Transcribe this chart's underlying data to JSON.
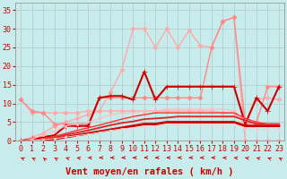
{
  "background_color": "#c8ecec",
  "grid_color": "#b0c8c8",
  "xlabel": "Vent moyen/en rafales ( km/h )",
  "x_ticks": [
    0,
    1,
    2,
    3,
    4,
    5,
    6,
    7,
    8,
    9,
    10,
    11,
    12,
    13,
    14,
    15,
    16,
    17,
    18,
    19,
    20,
    21,
    22,
    23
  ],
  "ylim": [
    0,
    37
  ],
  "xlim": [
    -0.5,
    23.5
  ],
  "yticks": [
    0,
    5,
    10,
    15,
    20,
    25,
    30,
    35
  ],
  "series": [
    {
      "color": "#ffaaaa",
      "y": [
        0,
        1,
        2,
        4,
        5,
        6,
        7,
        8,
        13,
        19,
        30,
        30,
        25,
        30,
        25,
        29.5,
        25.5,
        25,
        32,
        33,
        0,
        0,
        0,
        0
      ],
      "marker": "D",
      "lw": 1.0,
      "ms": 2.5
    },
    {
      "color": "#ffaaaa",
      "y": [
        11,
        7.5,
        7.5,
        7.5,
        7.5,
        7.5,
        8,
        8,
        8,
        8,
        8,
        8,
        8,
        8,
        8,
        8,
        8,
        8,
        7.5,
        7.5,
        4.5,
        11,
        11.5,
        11
      ],
      "marker": "D",
      "lw": 1.0,
      "ms": 2.5
    },
    {
      "color": "#ff8888",
      "y": [
        11,
        8,
        7.5,
        4.5,
        4.5,
        4.5,
        4.5,
        11.5,
        11.5,
        11.5,
        11.5,
        11.5,
        11.5,
        11.5,
        11.5,
        11.5,
        11.5,
        25,
        32,
        33,
        4.5,
        5,
        14.5,
        14.5
      ],
      "marker": "D",
      "lw": 1.0,
      "ms": 2.5
    },
    {
      "color": "#cc0000",
      "y": [
        0,
        0.5,
        1,
        1.5,
        4,
        4,
        4,
        11.5,
        12,
        12,
        11,
        18.5,
        11,
        14.5,
        14.5,
        14.5,
        14.5,
        14.5,
        14.5,
        14.5,
        4.5,
        11.5,
        8,
        14.5
      ],
      "marker": "+",
      "lw": 1.5,
      "ms": 5
    },
    {
      "color": "#ffbbbb",
      "y": [
        0,
        0.5,
        1.5,
        2.5,
        4,
        4.5,
        5,
        6,
        7,
        7.5,
        7.5,
        8,
        8,
        8.5,
        8.5,
        8.5,
        8.5,
        8.5,
        8.5,
        8,
        5.5,
        4.5,
        4.5,
        4.5
      ],
      "marker": "s",
      "lw": 0.8,
      "ms": 2
    },
    {
      "color": "#cc0000",
      "y": [
        0,
        0,
        0.2,
        0.5,
        1,
        1.5,
        2,
        2.5,
        3,
        3.5,
        4,
        4.5,
        4.5,
        5,
        5,
        5,
        5,
        5,
        5,
        5,
        4,
        4,
        4,
        4
      ],
      "marker": null,
      "lw": 2.0,
      "ms": 0
    },
    {
      "color": "#dd2222",
      "y": [
        0,
        0.1,
        0.4,
        0.9,
        1.6,
        2.2,
        2.8,
        3.5,
        4.2,
        4.8,
        5.2,
        5.8,
        6,
        6.2,
        6.5,
        6.5,
        6.5,
        6.5,
        6.5,
        6.5,
        5.5,
        4.5,
        4.5,
        4.5
      ],
      "marker": null,
      "lw": 1.3,
      "ms": 0
    },
    {
      "color": "#ff3333",
      "y": [
        0,
        0.2,
        0.6,
        1.2,
        2,
        2.8,
        3.5,
        4.2,
        5,
        5.8,
        6.5,
        7,
        7.5,
        7.5,
        7.5,
        7.5,
        7.5,
        7.5,
        7.5,
        7.5,
        6,
        5,
        4.5,
        4.5
      ],
      "marker": null,
      "lw": 1.0,
      "ms": 0
    },
    {
      "color": "#ffcccc",
      "y": [
        0,
        0.1,
        0.3,
        0.6,
        1,
        1.4,
        1.8,
        2.3,
        2.8,
        3.2,
        3.5,
        3.8,
        4,
        4.2,
        4.3,
        4.5,
        4.5,
        4.5,
        4.5,
        4.5,
        3.5,
        3,
        3,
        3
      ],
      "marker": "s",
      "lw": 0.7,
      "ms": 1.5
    }
  ],
  "wind_arrow_angles": [
    220,
    210,
    200,
    210,
    230,
    240,
    260,
    270,
    270,
    270,
    270,
    280,
    270,
    270,
    270,
    270,
    270,
    270,
    260,
    250,
    240,
    230,
    220,
    210
  ],
  "font_color": "#cc0000",
  "tick_fontsize": 6,
  "label_fontsize": 7.5
}
